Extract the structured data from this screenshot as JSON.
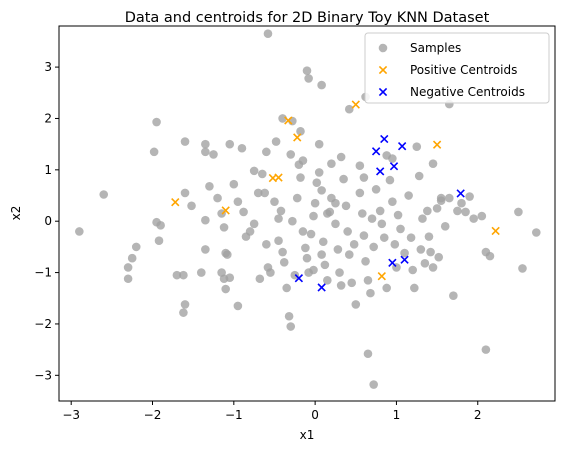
{
  "chart_data": {
    "type": "scatter",
    "title": "Data and centroids for 2D Binary Toy KNN Dataset",
    "xlabel": "x1",
    "ylabel": "x2",
    "xlim": [
      -3.15,
      2.95
    ],
    "ylim": [
      -3.5,
      3.8
    ],
    "xticks": [
      -3,
      -2,
      -1,
      0,
      1,
      2
    ],
    "yticks": [
      -3,
      -2,
      -1,
      0,
      1,
      2,
      3
    ],
    "grid": false,
    "legend_position": "top-right",
    "series": [
      {
        "name": "Samples",
        "marker": "circle",
        "color": "#a0a0a0",
        "points": [
          [
            -0.58,
            3.65
          ],
          [
            -0.1,
            2.93
          ],
          [
            -0.08,
            2.78
          ],
          [
            0.08,
            2.65
          ],
          [
            0.62,
            2.42
          ],
          [
            0.42,
            2.18
          ],
          [
            1.65,
            2.28
          ],
          [
            -0.4,
            2.0
          ],
          [
            -0.28,
            1.95
          ],
          [
            -0.18,
            1.75
          ],
          [
            0.05,
            1.5
          ],
          [
            -1.95,
            1.93
          ],
          [
            -1.98,
            1.35
          ],
          [
            -1.6,
            1.55
          ],
          [
            -1.35,
            1.5
          ],
          [
            -1.25,
            1.3
          ],
          [
            -1.05,
            1.5
          ],
          [
            -0.9,
            1.42
          ],
          [
            -0.6,
            1.35
          ],
          [
            -0.48,
            1.55
          ],
          [
            -0.3,
            1.3
          ],
          [
            -0.15,
            1.18
          ],
          [
            0.2,
            1.12
          ],
          [
            0.32,
            1.25
          ],
          [
            0.55,
            1.08
          ],
          [
            0.95,
            1.22
          ],
          [
            1.25,
            1.45
          ],
          [
            1.45,
            1.12
          ],
          [
            -2.6,
            0.52
          ],
          [
            -2.9,
            -0.2
          ],
          [
            -2.2,
            -0.5
          ],
          [
            -2.25,
            -0.72
          ],
          [
            -2.3,
            -0.9
          ],
          [
            -2.3,
            -1.12
          ],
          [
            -1.95,
            -0.02
          ],
          [
            -1.9,
            -0.08
          ],
          [
            -1.92,
            -0.38
          ],
          [
            -1.7,
            -1.05
          ],
          [
            -1.62,
            -1.05
          ],
          [
            -1.6,
            -1.62
          ],
          [
            -1.62,
            -1.78
          ],
          [
            -1.4,
            -1.0
          ],
          [
            -1.35,
            0.02
          ],
          [
            -1.3,
            0.68
          ],
          [
            -1.35,
            1.35
          ],
          [
            -1.2,
            0.45
          ],
          [
            -1.15,
            0.15
          ],
          [
            -1.12,
            -0.12
          ],
          [
            -1.1,
            -0.62
          ],
          [
            -1.08,
            -0.65
          ],
          [
            -1.15,
            -1.0
          ],
          [
            -1.12,
            -1.12
          ],
          [
            -1.1,
            -1.32
          ],
          [
            -1.05,
            -1.1
          ],
          [
            -0.95,
            -1.65
          ],
          [
            -1.0,
            0.72
          ],
          [
            -0.95,
            0.38
          ],
          [
            -0.88,
            0.18
          ],
          [
            -0.85,
            -0.3
          ],
          [
            -0.8,
            -0.2
          ],
          [
            -0.75,
            -0.05
          ],
          [
            -0.7,
            0.55
          ],
          [
            -0.65,
            0.92
          ],
          [
            -0.62,
            0.55
          ],
          [
            -0.6,
            -0.45
          ],
          [
            -0.58,
            -0.9
          ],
          [
            -0.55,
            -1.0
          ],
          [
            -0.5,
            0.38
          ],
          [
            -0.45,
            0.05
          ],
          [
            -0.42,
            0.2
          ],
          [
            -0.4,
            -0.6
          ],
          [
            -0.38,
            -0.8
          ],
          [
            -0.35,
            -1.3
          ],
          [
            -0.32,
            -1.85
          ],
          [
            -0.3,
            -2.05
          ],
          [
            -0.28,
            0.0
          ],
          [
            -0.22,
            0.45
          ],
          [
            -0.2,
            1.1
          ],
          [
            -0.18,
            0.85
          ],
          [
            -0.15,
            -0.2
          ],
          [
            -0.12,
            -0.52
          ],
          [
            -0.1,
            -0.72
          ],
          [
            -0.08,
            -1.0
          ],
          [
            -0.05,
            -0.25
          ],
          [
            -0.02,
            0.1
          ],
          [
            0.0,
            0.35
          ],
          [
            0.02,
            0.75
          ],
          [
            0.05,
            0.95
          ],
          [
            0.08,
            0.6
          ],
          [
            0.1,
            -0.4
          ],
          [
            0.12,
            -0.85
          ],
          [
            0.15,
            -1.15
          ],
          [
            0.18,
            0.18
          ],
          [
            0.2,
            0.45
          ],
          [
            0.25,
            -0.05
          ],
          [
            0.28,
            -0.55
          ],
          [
            0.3,
            -1.0
          ],
          [
            0.32,
            -1.25
          ],
          [
            0.35,
            0.82
          ],
          [
            0.38,
            0.3
          ],
          [
            0.4,
            -0.2
          ],
          [
            0.42,
            -0.65
          ],
          [
            0.45,
            -1.2
          ],
          [
            0.5,
            -1.62
          ],
          [
            0.55,
            0.55
          ],
          [
            0.58,
            0.15
          ],
          [
            0.6,
            -0.28
          ],
          [
            0.62,
            -0.78
          ],
          [
            0.65,
            -1.15
          ],
          [
            0.68,
            -1.4
          ],
          [
            0.7,
            0.05
          ],
          [
            0.72,
            -0.5
          ],
          [
            0.75,
            0.62
          ],
          [
            0.8,
            0.2
          ],
          [
            0.82,
            -0.05
          ],
          [
            0.85,
            -0.32
          ],
          [
            0.88,
            -1.3
          ],
          [
            0.92,
            0.8
          ],
          [
            0.95,
            0.38
          ],
          [
            0.98,
            -0.45
          ],
          [
            1.0,
            -0.9
          ],
          [
            1.02,
            0.12
          ],
          [
            1.05,
            -0.15
          ],
          [
            1.1,
            -0.62
          ],
          [
            1.15,
            0.5
          ],
          [
            1.18,
            -0.32
          ],
          [
            1.2,
            -0.95
          ],
          [
            1.22,
            -1.3
          ],
          [
            1.28,
            0.88
          ],
          [
            1.3,
            -0.55
          ],
          [
            1.32,
            0.05
          ],
          [
            1.35,
            -0.82
          ],
          [
            1.4,
            -0.3
          ],
          [
            1.42,
            -0.6
          ],
          [
            1.45,
            -0.9
          ],
          [
            1.5,
            0.25
          ],
          [
            1.52,
            -0.7
          ],
          [
            1.55,
            0.45
          ],
          [
            1.6,
            -0.1
          ],
          [
            1.65,
            0.45
          ],
          [
            1.7,
            -1.45
          ],
          [
            1.75,
            0.2
          ],
          [
            1.8,
            0.35
          ],
          [
            1.85,
            0.18
          ],
          [
            1.9,
            0.48
          ],
          [
            1.95,
            0.05
          ],
          [
            2.05,
            0.1
          ],
          [
            2.1,
            -0.6
          ],
          [
            2.15,
            -0.68
          ],
          [
            2.1,
            -2.5
          ],
          [
            2.5,
            0.18
          ],
          [
            2.55,
            -0.92
          ],
          [
            2.72,
            -0.22
          ],
          [
            0.65,
            -2.58
          ],
          [
            0.72,
            -3.18
          ],
          [
            -1.35,
            -0.55
          ],
          [
            -1.52,
            0.3
          ],
          [
            -1.6,
            0.55
          ],
          [
            -0.75,
            0.98
          ],
          [
            -0.02,
            -0.95
          ],
          [
            0.25,
            0.35
          ],
          [
            0.6,
            0.85
          ],
          [
            0.88,
            1.28
          ],
          [
            1.55,
            0.4
          ],
          [
            1.38,
            0.2
          ],
          [
            0.48,
            -0.45
          ],
          [
            -0.25,
            -1.05
          ],
          [
            0.15,
            0.15
          ],
          [
            -0.68,
            -1.12
          ],
          [
            -0.45,
            -0.38
          ],
          [
            0.08,
            -0.65
          ]
        ]
      },
      {
        "name": "Positive Centroids",
        "marker": "x",
        "color": "#ffa500",
        "points": [
          [
            0.5,
            2.27
          ],
          [
            -0.33,
            1.96
          ],
          [
            -0.22,
            1.63
          ],
          [
            1.5,
            1.49
          ],
          [
            -0.52,
            0.84
          ],
          [
            -0.45,
            0.85
          ],
          [
            -1.72,
            0.37
          ],
          [
            -1.1,
            0.21
          ],
          [
            2.22,
            -0.19
          ],
          [
            0.82,
            -1.07
          ]
        ]
      },
      {
        "name": "Negative Centroids",
        "marker": "x",
        "color": "#0000ff",
        "points": [
          [
            0.85,
            1.6
          ],
          [
            0.75,
            1.36
          ],
          [
            1.07,
            1.46
          ],
          [
            0.97,
            1.07
          ],
          [
            0.8,
            0.97
          ],
          [
            1.79,
            0.54
          ],
          [
            0.95,
            -0.81
          ],
          [
            1.1,
            -0.75
          ],
          [
            -0.2,
            -1.11
          ],
          [
            0.08,
            -1.29
          ]
        ]
      }
    ]
  }
}
